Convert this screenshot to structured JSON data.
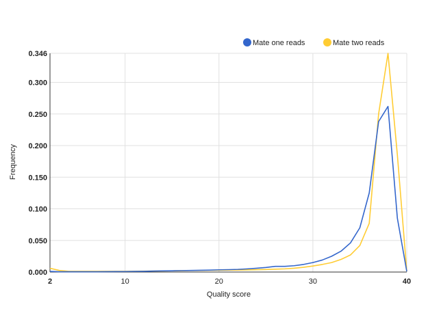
{
  "chart_data": {
    "type": "line",
    "xlabel": "Quality score",
    "ylabel": "Frequency",
    "xlim": [
      2,
      40
    ],
    "ylim": [
      0,
      0.346
    ],
    "x_ticks": [
      {
        "value": 2,
        "label": "2",
        "bold": true
      },
      {
        "value": 10,
        "label": "10",
        "bold": false
      },
      {
        "value": 20,
        "label": "20",
        "bold": false
      },
      {
        "value": 30,
        "label": "30",
        "bold": false
      },
      {
        "value": 40,
        "label": "40",
        "bold": true
      }
    ],
    "y_ticks": [
      {
        "value": 0,
        "label": "0.000"
      },
      {
        "value": 0.05,
        "label": "0.050"
      },
      {
        "value": 0.1,
        "label": "0.100"
      },
      {
        "value": 0.15,
        "label": "0.150"
      },
      {
        "value": 0.2,
        "label": "0.200"
      },
      {
        "value": 0.25,
        "label": "0.250"
      },
      {
        "value": 0.3,
        "label": "0.300"
      },
      {
        "value": 0.346,
        "label": "0.346"
      }
    ],
    "grid": true,
    "legend_position": "top-right",
    "x": [
      2,
      3,
      4,
      5,
      6,
      7,
      8,
      9,
      10,
      11,
      12,
      13,
      14,
      15,
      16,
      17,
      18,
      19,
      20,
      21,
      22,
      23,
      24,
      25,
      26,
      27,
      28,
      29,
      30,
      31,
      32,
      33,
      34,
      35,
      36,
      37,
      38,
      39,
      40
    ],
    "series": [
      {
        "name": "Mate one reads",
        "color": "#3366cc",
        "values": [
          0.001,
          0.0005,
          0.0005,
          0.0005,
          0.0005,
          0.0005,
          0.0006,
          0.0007,
          0.0008,
          0.001,
          0.0012,
          0.0015,
          0.0018,
          0.002,
          0.0023,
          0.0025,
          0.0028,
          0.003,
          0.0035,
          0.0038,
          0.0042,
          0.005,
          0.006,
          0.0072,
          0.009,
          0.009,
          0.01,
          0.012,
          0.015,
          0.019,
          0.025,
          0.033,
          0.046,
          0.07,
          0.125,
          0.238,
          0.262,
          0.085,
          0.001
        ]
      },
      {
        "name": "Mate two reads",
        "color": "#ffcc33",
        "values": [
          0.006,
          0.0025,
          0.0012,
          0.0012,
          0.0012,
          0.0012,
          0.0012,
          0.0012,
          0.0012,
          0.0013,
          0.0014,
          0.0015,
          0.0017,
          0.0019,
          0.0021,
          0.0023,
          0.0025,
          0.0027,
          0.0029,
          0.003,
          0.0032,
          0.0034,
          0.0037,
          0.004,
          0.0045,
          0.005,
          0.006,
          0.0075,
          0.0095,
          0.012,
          0.015,
          0.02,
          0.027,
          0.042,
          0.077,
          0.25,
          0.346,
          0.185,
          0.001
        ]
      }
    ]
  }
}
